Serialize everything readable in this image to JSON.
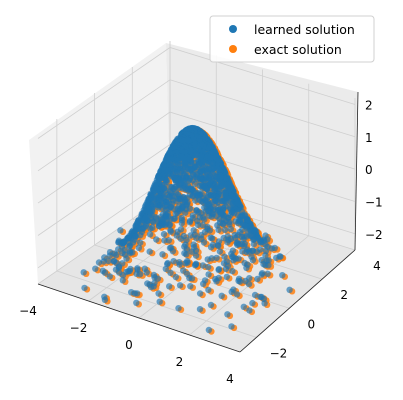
{
  "chart_data": {
    "type": "scatter",
    "projection": "3d",
    "title": "",
    "xlabel": "",
    "ylabel": "",
    "zlabel": "",
    "xlim": [
      -4,
      4
    ],
    "ylim": [
      -3,
      4
    ],
    "zlim": [
      -2.5,
      2.2
    ],
    "x_ticks": [
      -4,
      -2,
      0,
      2,
      4
    ],
    "y_ticks": [
      -2,
      0,
      2,
      4
    ],
    "z_ticks": [
      -2,
      -1,
      0,
      1,
      2
    ],
    "x_tick_labels": [
      "−4",
      "−2",
      "0",
      "2",
      "4"
    ],
    "y_tick_labels": [
      "−2",
      "0",
      "2",
      "4"
    ],
    "z_tick_labels": [
      "−2",
      "−1",
      "0",
      "1",
      "2"
    ],
    "grid": true,
    "legend_position": "top-right",
    "series": [
      {
        "name": "exact solution",
        "color": "#ff7f0e"
      },
      {
        "name": "learned solution",
        "color": "#1f77b4"
      }
    ],
    "surface_description": "points sampled from a dome-shaped surface peaking near z=2 at the origin and falling to about z=-2.5 at the edges",
    "legend": [
      {
        "label": "learned solution",
        "color": "#1f77b4"
      },
      {
        "label": "exact solution",
        "color": "#ff7f0e"
      }
    ]
  }
}
